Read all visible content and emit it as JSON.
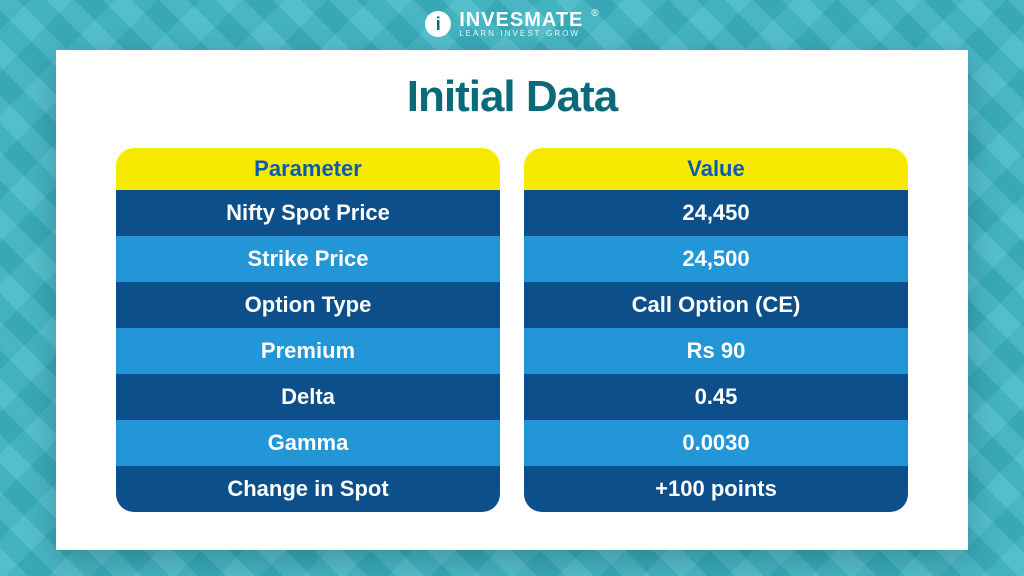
{
  "brand": {
    "badge_letter": "i",
    "name": "INVESMATE",
    "tagline": "LEARN·INVEST·GROW",
    "reg_mark": "®"
  },
  "title": "Initial Data",
  "colors": {
    "bg": "#3cb5c4",
    "panel": "#ffffff",
    "title": "#0a6a7a",
    "header_bg": "#f7ea00",
    "header_text": "#0b5bb3",
    "row_dark": "#0c4f8a",
    "row_light": "#2296d6",
    "row_text": "#ffffff"
  },
  "table": {
    "header_param": "Parameter",
    "header_value": "Value",
    "rows": [
      {
        "param": "Nifty Spot Price",
        "value": "24,450"
      },
      {
        "param": "Strike Price",
        "value": "24,500"
      },
      {
        "param": "Option Type",
        "value": "Call Option (CE)"
      },
      {
        "param": "Premium",
        "value": "Rs 90"
      },
      {
        "param": "Delta",
        "value": "0.45"
      },
      {
        "param": "Gamma",
        "value": "0.0030"
      },
      {
        "param": "Change in Spot",
        "value": "+100 points"
      }
    ]
  }
}
